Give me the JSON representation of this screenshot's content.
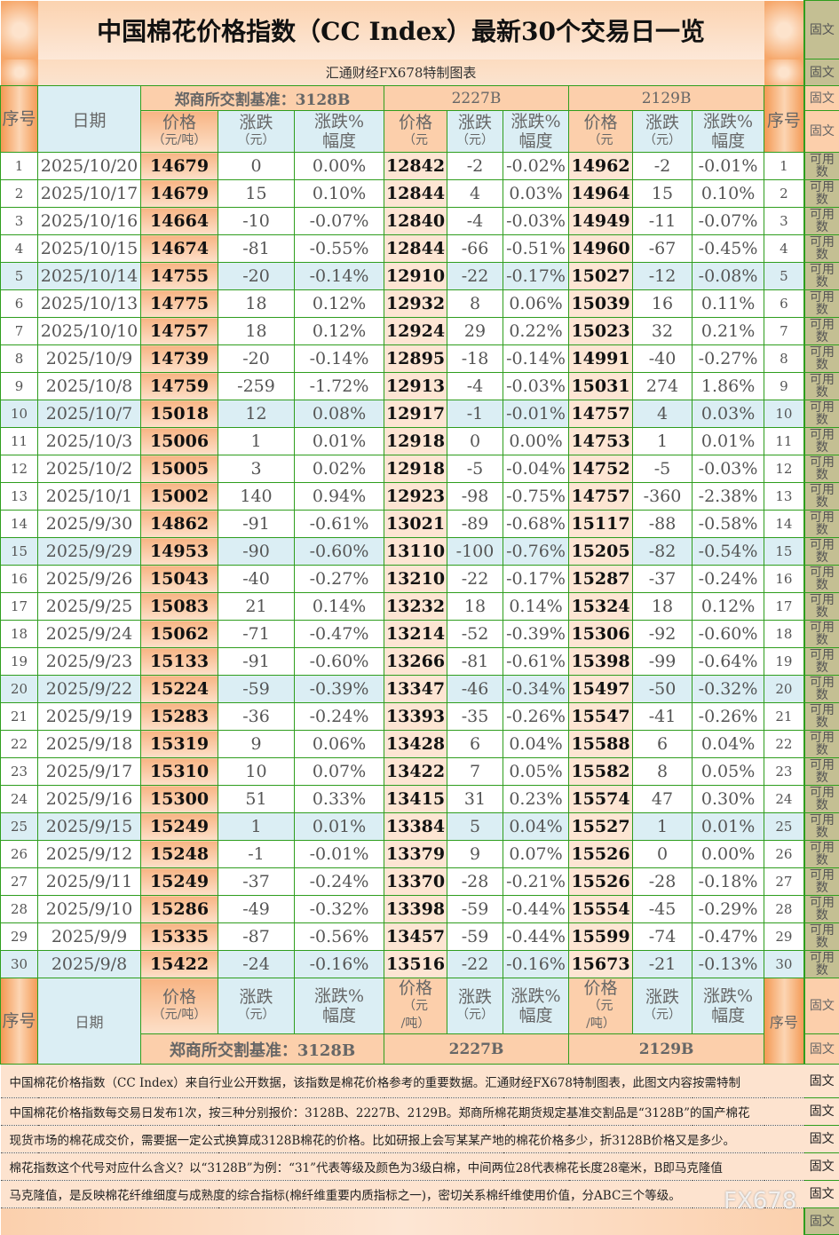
{
  "title": "中国棉花价格指数（CC Index）最新30个交易日一览",
  "subtitle": "汇通财经FX678特制图表",
  "side_header": "固文",
  "side_row": "可用数",
  "headers": {
    "seq": "序号",
    "date": "日期",
    "g1": "郑商所交割基准：3128B",
    "g2": "2227B",
    "g3": "2129B",
    "price": "价格",
    "price_unit": "（元/吨）",
    "price_unit_short": "（元",
    "price_unit_tail": "/吨）",
    "chg": "涨跌",
    "chg_unit": "（元）",
    "pct": "涨跌%",
    "pct2": "幅度"
  },
  "rows": [
    [
      "1",
      "2025/10/20",
      "14679",
      "0",
      "0.00%",
      "12842",
      "-2",
      "-0.02%",
      "14962",
      "-2",
      "-0.01%"
    ],
    [
      "2",
      "2025/10/17",
      "14679",
      "15",
      "0.10%",
      "12844",
      "4",
      "0.03%",
      "14964",
      "15",
      "0.10%"
    ],
    [
      "3",
      "2025/10/16",
      "14664",
      "-10",
      "-0.07%",
      "12840",
      "-4",
      "-0.03%",
      "14949",
      "-11",
      "-0.07%"
    ],
    [
      "4",
      "2025/10/15",
      "14674",
      "-81",
      "-0.55%",
      "12844",
      "-66",
      "-0.51%",
      "14960",
      "-67",
      "-0.45%"
    ],
    [
      "5",
      "2025/10/14",
      "14755",
      "-20",
      "-0.14%",
      "12910",
      "-22",
      "-0.17%",
      "15027",
      "-12",
      "-0.08%"
    ],
    [
      "6",
      "2025/10/13",
      "14775",
      "18",
      "0.12%",
      "12932",
      "8",
      "0.06%",
      "15039",
      "16",
      "0.11%"
    ],
    [
      "7",
      "2025/10/10",
      "14757",
      "18",
      "0.12%",
      "12924",
      "29",
      "0.22%",
      "15023",
      "32",
      "0.21%"
    ],
    [
      "8",
      "2025/10/9",
      "14739",
      "-20",
      "-0.14%",
      "12895",
      "-18",
      "-0.14%",
      "14991",
      "-40",
      "-0.27%"
    ],
    [
      "9",
      "2025/10/8",
      "14759",
      "-259",
      "-1.72%",
      "12913",
      "-4",
      "-0.03%",
      "15031",
      "274",
      "1.86%"
    ],
    [
      "10",
      "2025/10/7",
      "15018",
      "12",
      "0.08%",
      "12917",
      "-1",
      "-0.01%",
      "14757",
      "4",
      "0.03%"
    ],
    [
      "11",
      "2025/10/3",
      "15006",
      "1",
      "0.01%",
      "12918",
      "0",
      "0.00%",
      "14753",
      "1",
      "0.01%"
    ],
    [
      "12",
      "2025/10/2",
      "15005",
      "3",
      "0.02%",
      "12918",
      "-5",
      "-0.04%",
      "14752",
      "-5",
      "-0.03%"
    ],
    [
      "13",
      "2025/10/1",
      "15002",
      "140",
      "0.94%",
      "12923",
      "-98",
      "-0.75%",
      "14757",
      "-360",
      "-2.38%"
    ],
    [
      "14",
      "2025/9/30",
      "14862",
      "-91",
      "-0.61%",
      "13021",
      "-89",
      "-0.68%",
      "15117",
      "-88",
      "-0.58%"
    ],
    [
      "15",
      "2025/9/29",
      "14953",
      "-90",
      "-0.60%",
      "13110",
      "-100",
      "-0.76%",
      "15205",
      "-82",
      "-0.54%"
    ],
    [
      "16",
      "2025/9/26",
      "15043",
      "-40",
      "-0.27%",
      "13210",
      "-22",
      "-0.17%",
      "15287",
      "-37",
      "-0.24%"
    ],
    [
      "17",
      "2025/9/25",
      "15083",
      "21",
      "0.14%",
      "13232",
      "18",
      "0.14%",
      "15324",
      "18",
      "0.12%"
    ],
    [
      "18",
      "2025/9/24",
      "15062",
      "-71",
      "-0.47%",
      "13214",
      "-52",
      "-0.39%",
      "15306",
      "-92",
      "-0.60%"
    ],
    [
      "19",
      "2025/9/23",
      "15133",
      "-91",
      "-0.60%",
      "13266",
      "-81",
      "-0.61%",
      "15398",
      "-99",
      "-0.64%"
    ],
    [
      "20",
      "2025/9/22",
      "15224",
      "-59",
      "-0.39%",
      "13347",
      "-46",
      "-0.34%",
      "15497",
      "-50",
      "-0.32%"
    ],
    [
      "21",
      "2025/9/19",
      "15283",
      "-36",
      "-0.24%",
      "13393",
      "-35",
      "-0.26%",
      "15547",
      "-41",
      "-0.26%"
    ],
    [
      "22",
      "2025/9/18",
      "15319",
      "9",
      "0.06%",
      "13428",
      "6",
      "0.04%",
      "15588",
      "6",
      "0.04%"
    ],
    [
      "23",
      "2025/9/17",
      "15310",
      "10",
      "0.07%",
      "13422",
      "7",
      "0.05%",
      "15582",
      "8",
      "0.05%"
    ],
    [
      "24",
      "2025/9/16",
      "15300",
      "51",
      "0.33%",
      "13415",
      "31",
      "0.23%",
      "15574",
      "47",
      "0.30%"
    ],
    [
      "25",
      "2025/9/15",
      "15249",
      "1",
      "0.01%",
      "13384",
      "5",
      "0.04%",
      "15527",
      "1",
      "0.01%"
    ],
    [
      "26",
      "2025/9/12",
      "15248",
      "-1",
      "-0.01%",
      "13379",
      "9",
      "0.07%",
      "15526",
      "0",
      "0.00%"
    ],
    [
      "27",
      "2025/9/11",
      "15249",
      "-37",
      "-0.24%",
      "13370",
      "-28",
      "-0.21%",
      "15526",
      "-28",
      "-0.18%"
    ],
    [
      "28",
      "2025/9/10",
      "15286",
      "-49",
      "-0.32%",
      "13398",
      "-59",
      "-0.44%",
      "15554",
      "-45",
      "-0.29%"
    ],
    [
      "29",
      "2025/9/9",
      "15335",
      "-87",
      "-0.56%",
      "13457",
      "-59",
      "-0.44%",
      "15599",
      "-74",
      "-0.47%"
    ],
    [
      "30",
      "2025/9/8",
      "15422",
      "-24",
      "-0.16%",
      "13516",
      "-22",
      "-0.16%",
      "15673",
      "-21",
      "-0.13%"
    ]
  ],
  "notes": [
    "中国棉花价格指数（CC Index）来自行业公开数据，该指数是棉花价格参考的重要数据。汇通财经FX678特制图表，此图文内容按需特制",
    "中国棉花价格指数每交易日发布1次，按三种分别报价：3128B、2227B、2129B。郑商所棉花期货规定基准交割品是“3128B”的国产棉花",
    "现货市场的棉花成交价，需要据一定公式换算成3128B棉花的价格。比如研报上会写某某产地的棉花价格多少，折3128B价格又是多少。",
    "棉花指数这个代号对应什么含义？以“3128B”为例：“31”代表等级及颜色为3级白棉，中间两位28代表棉花长度28毫米，B即马克隆值",
    "马克隆值，是反映棉花纤维细度与成熟度的综合指标(棉纤维重要内质指标之一)，密切关系棉纤维使用价值，分ABC三个等级。"
  ],
  "watermark": "FX678",
  "colors": {
    "border": "#2f9e1e",
    "highlight_row": "#dbeef4",
    "price_3128B": "#f8b584",
    "header_purple": "#7a2fb0",
    "pct_red": "#d0102a",
    "side": "#c4bf93"
  }
}
